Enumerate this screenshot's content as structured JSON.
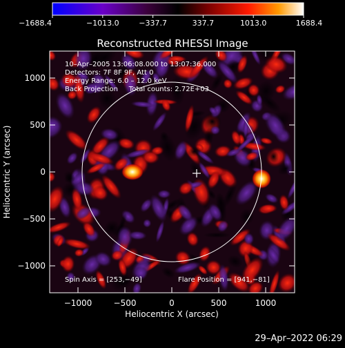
{
  "colorbar": {
    "tick_labels": [
      "−1688.4",
      "−1013.0",
      "−337.7",
      "337.7",
      "1013.0",
      "1688.4"
    ],
    "stops": [
      "#0000ff",
      "#6a00c8",
      "#3a003a",
      "#000000",
      "#7a0000",
      "#ff1a00",
      "#ff9a00",
      "#ffffff"
    ]
  },
  "title": "Reconstructed RHESSI Image",
  "info_lines": [
    "10–Apr–2005 13:06:08.000 to 13:07:36.000",
    "Detectors: 7F 8F 9F, Att 0",
    "Energy Range: 6.0 – 12.0 keV",
    "Back Projection     Total counts: 2.72E+03"
  ],
  "spin_axis_text": "Spin Axis = [253,−49]",
  "flare_position_text": "Flare Position = [941,−81]",
  "x_axis": {
    "label": "Heliocentric X (arcsec)",
    "ticks": [
      "−1000",
      "−500",
      "0",
      "500",
      "1000"
    ]
  },
  "y_axis": {
    "label": "Heliocentric Y (arcsec)",
    "ticks": [
      "1000",
      "500",
      "0",
      "−500",
      "−1000"
    ]
  },
  "timestamp": "29–Apr–2022 06:29"
}
